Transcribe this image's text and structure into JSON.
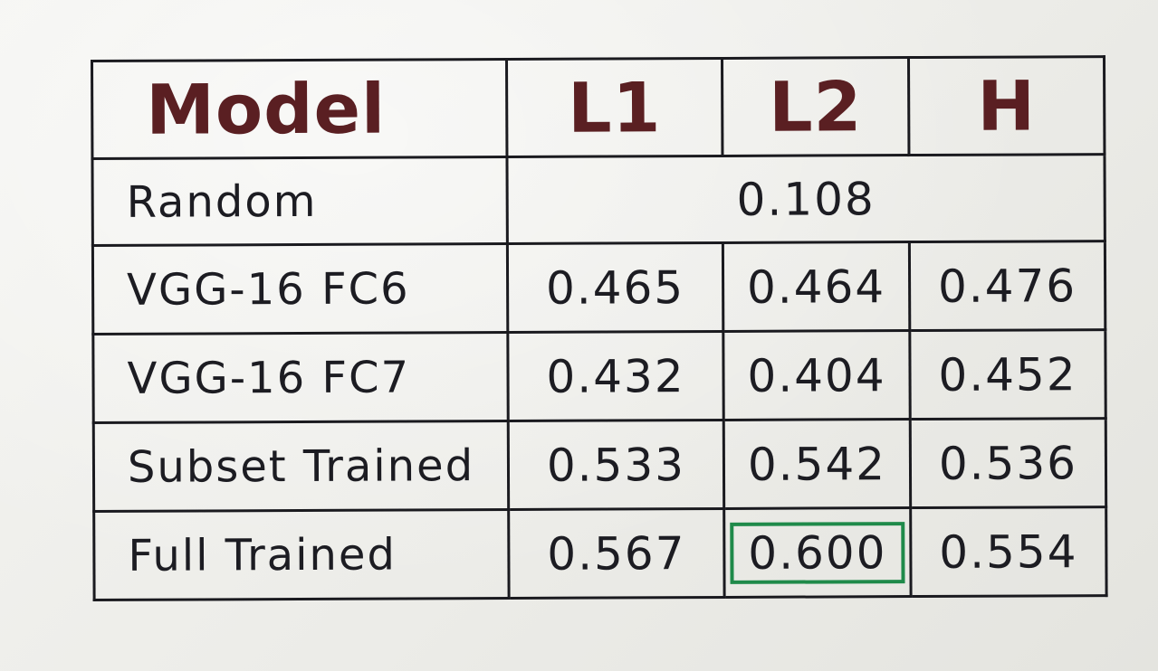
{
  "table": {
    "headers": [
      "Model",
      "L1",
      "L2",
      "H"
    ],
    "random": {
      "label": "Random",
      "value": "0.108"
    },
    "rows": [
      {
        "label": "VGG-16  FC6",
        "values": [
          "0.465",
          "0.464",
          "0.476"
        ]
      },
      {
        "label": "VGG-16  FC7",
        "values": [
          "0.432",
          "0.404",
          "0.452"
        ]
      },
      {
        "label": "Subset Trained",
        "values": [
          "0.533",
          "0.542",
          "0.536"
        ]
      },
      {
        "label": "Full  Trained",
        "values": [
          "0.567",
          "0.600",
          "0.554"
        ]
      }
    ],
    "highlight": {
      "row": 3,
      "column": "L2",
      "color": "#1f8a4a"
    }
  },
  "colors": {
    "header_ink": "#5a1f22",
    "body_ink": "#1c1c22",
    "highlight_box": "#1f8a4a",
    "paper": "#ecece8"
  }
}
